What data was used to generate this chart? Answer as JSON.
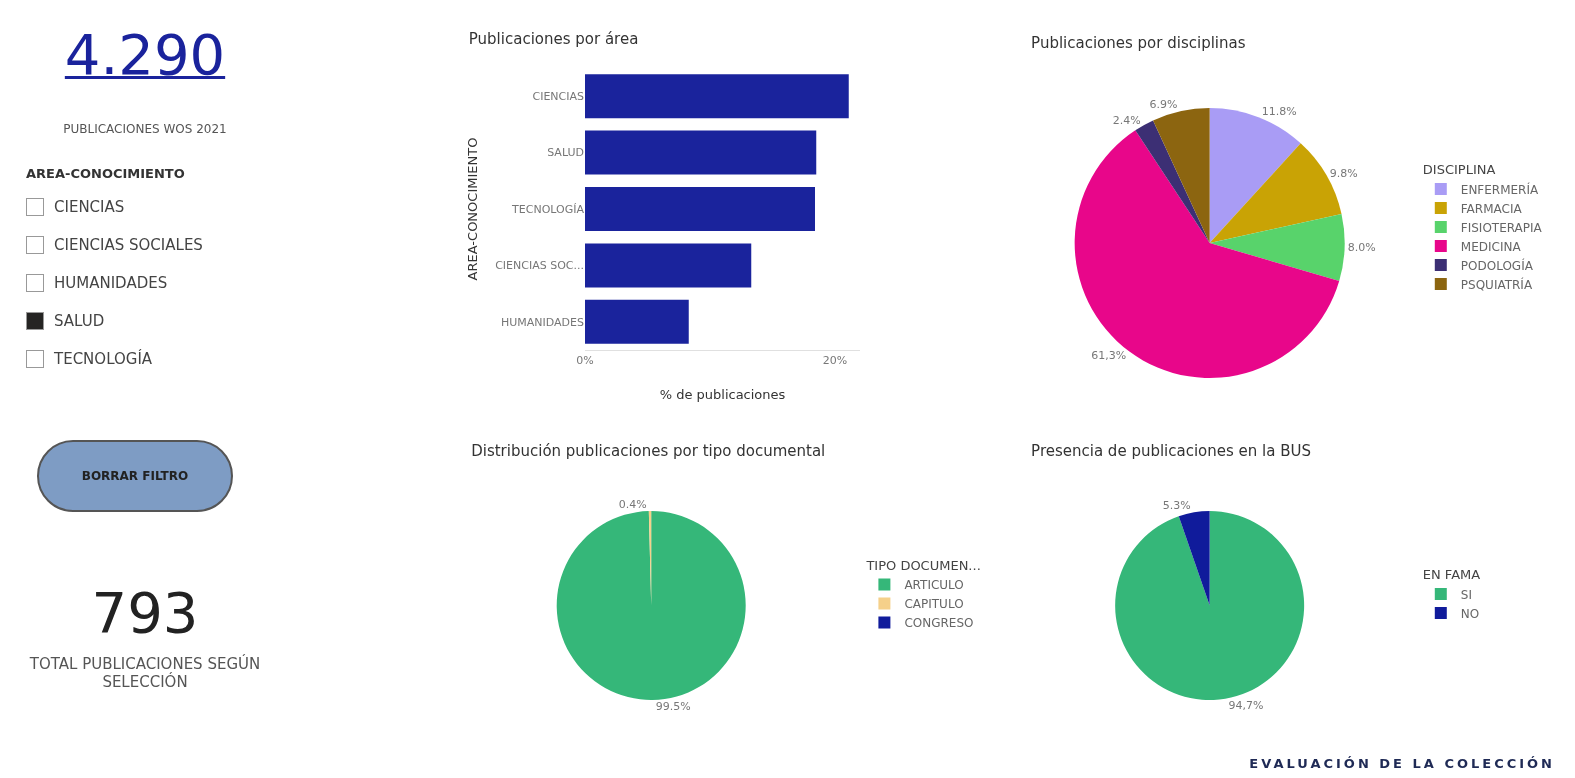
{
  "chart_data": [
    {
      "type": "other",
      "title": "4.290",
      "subtitle": "PUBLICACIONES WOS 2021",
      "legend_title": "AREA-CONOCIMIENTO",
      "categories": [
        "CIENCIAS",
        "CIENCIAS SOCIALES",
        "HUMANIDADES",
        "SALUD",
        "TECNOLOGÍA"
      ],
      "colors": [
        "#ffffff",
        "#ffffff",
        "#ffffff",
        "#252423",
        "#ffffff"
      ],
      "annotations": [
        "BORRAR FILTRO",
        "793",
        "TOTAL PUBLICACIONES SEGÚN SELECCIÓN"
      ]
    },
    {
      "type": "bar",
      "orientation": "horizontal",
      "title": "Publicaciones por área",
      "xlabel": "% de publicaciones",
      "ylabel": "AREA-CONOCIMIENTO",
      "categories": [
        "CIENCIAS",
        "SALUD",
        "TECNOLOGÍA",
        "CIENCIAS SOC...",
        "HUMANIDADES"
      ],
      "values": [
        21.1,
        18.5,
        18.4,
        13.3,
        8.3
      ],
      "color": "#1a239c",
      "xlim": [
        0,
        22
      ],
      "xticks": [
        {
          "value": 0,
          "label": "0%"
        },
        {
          "value": 20,
          "label": "20%"
        }
      ],
      "grid": false
    },
    {
      "type": "pie",
      "title": "Publicaciones por disciplinas",
      "legend_title": "DISCIPLINA",
      "legend": "right",
      "categories": [
        "ENFERMERÍA",
        "FARMACIA",
        "FISIOTERAPIA",
        "MEDICINA",
        "PODOLOGÍA",
        "PSQUIATRÍA"
      ],
      "values": [
        11.8,
        9.8,
        8.0,
        61.3,
        2.4,
        6.9
      ],
      "value_labels": [
        "11.8%",
        "9.8%",
        "8.0%",
        "61,3%",
        "2.4%",
        "6.9%"
      ],
      "colors": [
        "#a99cf5",
        "#c9a305",
        "#58d36b",
        "#e8068a",
        "#3c2f74",
        "#8c6510"
      ]
    },
    {
      "type": "pie",
      "title": "Distribución publicaciones por tipo documental",
      "legend_title": "TIPO DOCUMEN...",
      "legend": "right",
      "categories": [
        "ARTICULO",
        "CAPITULO",
        "CONGRESO"
      ],
      "values": [
        99.5,
        0.4,
        null
      ],
      "value_labels": [
        "99.5%",
        "0.4%",
        null
      ],
      "colors": [
        "#35b779",
        "#f5d08a",
        "#101b9b"
      ]
    },
    {
      "type": "pie",
      "title": "Presencia de publicaciones en la BUS",
      "legend_title": "EN FAMA",
      "legend": "right",
      "categories": [
        "SI",
        "NO"
      ],
      "values": [
        94.7,
        5.3
      ],
      "value_labels": [
        "94,7%",
        "5.3%"
      ],
      "colors": [
        "#35b779",
        "#101b9b"
      ],
      "annotations": [
        "EVALUACIÓN DE LA COLECCIÓN"
      ]
    }
  ]
}
